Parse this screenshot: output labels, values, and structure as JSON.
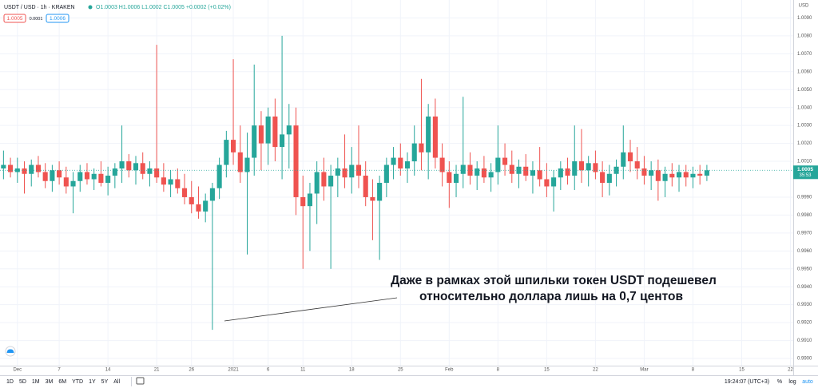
{
  "header": {
    "symbol": "USDT / USD · 1h · KRAKEN",
    "ohlc": "O1.0003 H1.0006 L1.0002 C1.0005 +0.0002 (+0.02%)",
    "bid": "1.0005",
    "spread": "0.0001",
    "ask": "1.0006"
  },
  "toolbar": {
    "ranges": [
      "1D",
      "5D",
      "1M",
      "3M",
      "6M",
      "YTD",
      "1Y",
      "5Y",
      "All"
    ],
    "clock": "19:24:07 (UTC+3)",
    "percent": "%",
    "log": "log",
    "auto": "auto"
  },
  "chart_data": {
    "type": "candlestick",
    "price_unit": "USD",
    "annotation": [
      "Даже в рамках этой шпильки токен USDT подешевел",
      "относительно доллара лишь на 0,7 центов"
    ],
    "up_color": "#26a69a",
    "down_color": "#ef5350",
    "grid": true,
    "last_price": 1.0005,
    "countdown": "35:53",
    "xlim": [
      -2.5,
      111.4
    ],
    "ylim": [
      0.9896,
      1.01
    ],
    "xticks": [
      {
        "value": 0,
        "label": "Dec"
      },
      {
        "value": 6,
        "label": "7"
      },
      {
        "value": 13,
        "label": "14"
      },
      {
        "value": 20,
        "label": "21"
      },
      {
        "value": 25,
        "label": "26"
      },
      {
        "value": 31,
        "label": "2021"
      },
      {
        "value": 36,
        "label": "6"
      },
      {
        "value": 41,
        "label": "11"
      },
      {
        "value": 48,
        "label": "18"
      },
      {
        "value": 55,
        "label": "25"
      },
      {
        "value": 62,
        "label": "Feb"
      },
      {
        "value": 69,
        "label": "8"
      },
      {
        "value": 76,
        "label": "15"
      },
      {
        "value": 83,
        "label": "22"
      },
      {
        "value": 90,
        "label": "Mar"
      },
      {
        "value": 97,
        "label": "8"
      },
      {
        "value": 104,
        "label": "15"
      },
      {
        "value": 111,
        "label": "22"
      }
    ],
    "yticks": [
      {
        "value": 0.99,
        "label": "0.9900"
      },
      {
        "value": 0.991,
        "label": "0.9910"
      },
      {
        "value": 0.992,
        "label": "0.9920"
      },
      {
        "value": 0.993,
        "label": "0.9930"
      },
      {
        "value": 0.994,
        "label": "0.9940"
      },
      {
        "value": 0.995,
        "label": "0.9950"
      },
      {
        "value": 0.996,
        "label": "0.9960"
      },
      {
        "value": 0.997,
        "label": "0.9970"
      },
      {
        "value": 0.998,
        "label": "0.9980"
      },
      {
        "value": 0.999,
        "label": "0.9990"
      },
      {
        "value": 1.001,
        "label": "1.0010"
      },
      {
        "value": 1.002,
        "label": "1.0020"
      },
      {
        "value": 1.003,
        "label": "1.0030"
      },
      {
        "value": 1.004,
        "label": "1.0040"
      },
      {
        "value": 1.005,
        "label": "1.0050"
      },
      {
        "value": 1.006,
        "label": "1.0060"
      },
      {
        "value": 1.007,
        "label": "1.0070"
      },
      {
        "value": 1.008,
        "label": "1.0080"
      },
      {
        "value": 1.009,
        "label": "1.0090"
      }
    ],
    "x": [
      -2,
      -1,
      0,
      1,
      2,
      3,
      4,
      5,
      6,
      7,
      8,
      9,
      10,
      11,
      12,
      13,
      14,
      15,
      16,
      17,
      18,
      19,
      20,
      21,
      22,
      23,
      24,
      25,
      26,
      27,
      28,
      29,
      30,
      31,
      32,
      33,
      34,
      35,
      36,
      37,
      38,
      39,
      40,
      41,
      42,
      43,
      44,
      45,
      46,
      47,
      48,
      49,
      50,
      51,
      52,
      53,
      54,
      55,
      56,
      57,
      58,
      59,
      60,
      61,
      62,
      63,
      64,
      65,
      66,
      67,
      68,
      69,
      70,
      71,
      72,
      73,
      74,
      75,
      76,
      77,
      78,
      79,
      80,
      81,
      82,
      83,
      84,
      85,
      86,
      87,
      88,
      89,
      90,
      91,
      92,
      93,
      94,
      95,
      96,
      97,
      98,
      99
    ],
    "candles": [
      [
        1.0006,
        1.0016,
        1.0,
        1.0008
      ],
      [
        1.0008,
        1.0012,
        1.0001,
        1.0004
      ],
      [
        1.0004,
        1.0012,
        0.9998,
        1.0006
      ],
      [
        1.0006,
        1.001,
        0.9992,
        1.0003
      ],
      [
        1.0003,
        1.0011,
        0.9996,
        1.0008
      ],
      [
        1.0008,
        1.0013,
        1.0001,
        1.0004
      ],
      [
        1.0004,
        1.0009,
        0.9995,
        0.9999
      ],
      [
        0.9999,
        1.0008,
        0.9993,
        1.0005
      ],
      [
        1.0005,
        1.001,
        0.9997,
        1.0001
      ],
      [
        1.0001,
        1.0007,
        0.9992,
        0.9996
      ],
      [
        0.9996,
        1.0004,
        0.9981,
        0.9999
      ],
      [
        0.9999,
        1.0008,
        0.9993,
        1.0004
      ],
      [
        1.0004,
        1.0009,
        0.9997,
        1.0
      ],
      [
        1.0,
        1.0006,
        0.9994,
        1.0003
      ],
      [
        1.0003,
        1.001,
        0.9996,
        0.9998
      ],
      [
        0.9998,
        1.0007,
        0.9991,
        1.0002
      ],
      [
        1.0002,
        1.0009,
        0.9995,
        1.0006
      ],
      [
        1.0006,
        1.003,
        0.9998,
        1.001
      ],
      [
        1.001,
        1.0014,
        1.0001,
        1.0005
      ],
      [
        1.0005,
        1.0013,
        0.9997,
        1.0009
      ],
      [
        1.0009,
        1.0015,
        1.0,
        1.0003
      ],
      [
        1.0003,
        1.001,
        0.9996,
        1.0006
      ],
      [
        1.0006,
        1.0075,
        0.9998,
        1.0001
      ],
      [
        1.0001,
        1.0009,
        0.9993,
        0.9997
      ],
      [
        0.9997,
        1.0005,
        0.999,
        1.0
      ],
      [
        1.0,
        1.0006,
        0.9992,
        0.9995
      ],
      [
        0.9995,
        1.0003,
        0.9986,
        0.999
      ],
      [
        0.999,
        0.9999,
        0.9981,
        0.9986
      ],
      [
        0.9986,
        0.9996,
        0.9978,
        0.9982
      ],
      [
        0.9982,
        0.9992,
        0.9976,
        0.9988
      ],
      [
        0.9988,
        0.9998,
        0.9916,
        0.9995
      ],
      [
        0.9995,
        1.0012,
        0.9989,
        1.0008
      ],
      [
        1.0008,
        1.0027,
        1.0001,
        1.0022
      ],
      [
        1.0022,
        1.0067,
        1.0008,
        1.0015
      ],
      [
        1.0015,
        1.003,
        0.9998,
        1.0004
      ],
      [
        1.0004,
        1.0026,
        0.9958,
        1.0012
      ],
      [
        1.0012,
        1.0064,
        1.0002,
        1.003
      ],
      [
        1.003,
        1.0038,
        1.0005,
        1.002
      ],
      [
        1.002,
        1.004,
        1.0008,
        1.0035
      ],
      [
        1.0035,
        1.0045,
        1.001,
        1.0018
      ],
      [
        1.0018,
        1.008,
        1.0,
        1.0025
      ],
      [
        1.0025,
        1.0042,
        1.0006,
        1.003
      ],
      [
        1.003,
        1.004,
        0.998,
        0.999
      ],
      [
        0.999,
        1.0002,
        0.995,
        0.9985
      ],
      [
        0.9985,
        0.9998,
        0.996,
        0.9992
      ],
      [
        0.9992,
        1.001,
        0.9975,
        1.0004
      ],
      [
        1.0004,
        1.0012,
        0.9988,
        0.9996
      ],
      [
        0.9996,
        1.0008,
        0.995,
        1.0002
      ],
      [
        1.0002,
        1.0012,
        0.999,
        1.0006
      ],
      [
        1.0006,
        1.0025,
        0.9995,
        1.0001
      ],
      [
        1.0001,
        1.0018,
        0.9992,
        1.0008
      ],
      [
        1.0008,
        1.003,
        0.9995,
        1.0002
      ],
      [
        1.0002,
        1.001,
        0.9985,
        0.999
      ],
      [
        0.999,
        1.0,
        0.9966,
        0.9988
      ],
      [
        0.9988,
        1.0002,
        0.9955,
        0.9998
      ],
      [
        0.9998,
        1.0012,
        0.999,
        1.0008
      ],
      [
        1.0008,
        1.0018,
        1.0,
        1.0012
      ],
      [
        1.0012,
        1.002,
        1.0002,
        1.0006
      ],
      [
        1.0006,
        1.0015,
        0.9998,
        1.001
      ],
      [
        1.001,
        1.003,
        1.0002,
        1.002
      ],
      [
        1.002,
        1.0056,
        1.0005,
        1.0015
      ],
      [
        1.0015,
        1.0042,
        1.0,
        1.0035
      ],
      [
        1.0035,
        1.0045,
        1.0006,
        1.0012
      ],
      [
        1.0012,
        1.002,
        0.9996,
        1.0004
      ],
      [
        1.0004,
        1.001,
        0.9984,
        0.9998
      ],
      [
        0.9998,
        1.0008,
        0.999,
        1.0003
      ],
      [
        1.0003,
        1.0046,
        0.9995,
        1.0008
      ],
      [
        1.0008,
        1.0015,
        0.9997,
        1.0002
      ],
      [
        1.0002,
        1.001,
        0.9994,
        1.0006
      ],
      [
        1.0006,
        1.0013,
        0.9998,
        1.0001
      ],
      [
        1.0001,
        1.0009,
        0.9993,
        1.0004
      ],
      [
        1.0004,
        1.003,
        0.9997,
        1.0012
      ],
      [
        1.0012,
        1.002,
        1.0002,
        1.0008
      ],
      [
        1.0008,
        1.0016,
        0.9998,
        1.0003
      ],
      [
        1.0003,
        1.0011,
        0.9995,
        1.0007
      ],
      [
        1.0007,
        1.0014,
        0.9999,
        1.0002
      ],
      [
        1.0002,
        1.001,
        0.9992,
        1.0005
      ],
      [
        1.0005,
        1.0018,
        0.9996,
        1.0
      ],
      [
        1.0,
        1.0009,
        0.999,
        0.9996
      ],
      [
        0.9996,
        1.0005,
        0.9982,
        1.0001
      ],
      [
        1.0001,
        1.001,
        0.9994,
        1.0006
      ],
      [
        1.0006,
        1.0012,
        0.9997,
        1.0002
      ],
      [
        1.0002,
        1.003,
        0.9994,
        1.001
      ],
      [
        1.001,
        1.0028,
        0.9998,
        1.0005
      ],
      [
        1.0005,
        1.0013,
        0.9996,
        1.0009
      ],
      [
        1.0009,
        1.0016,
        1.0,
        1.0004
      ],
      [
        1.0004,
        1.001,
        0.999,
        0.9998
      ],
      [
        0.9998,
        1.0008,
        0.9991,
        1.0003
      ],
      [
        1.0003,
        1.0011,
        0.9996,
        1.0007
      ],
      [
        1.0007,
        1.003,
        1.0,
        1.0015
      ],
      [
        1.0015,
        1.0022,
        1.0004,
        1.001
      ],
      [
        1.001,
        1.0018,
        1.0,
        1.0006
      ],
      [
        1.0006,
        1.0013,
        0.9997,
        1.0002
      ],
      [
        1.0002,
        1.001,
        0.9994,
        1.0005
      ],
      [
        1.0005,
        1.0011,
        0.9988,
        0.9999
      ],
      [
        0.9999,
        1.0007,
        0.999,
        1.0003
      ],
      [
        1.0003,
        1.0009,
        0.9996,
        1.0001
      ],
      [
        1.0001,
        1.0008,
        0.9993,
        1.0004
      ],
      [
        1.0004,
        1.0008,
        0.9996,
        1.0001
      ],
      [
        1.0001,
        1.0007,
        0.9995,
        1.0003
      ],
      [
        1.0003,
        1.0008,
        0.9997,
        1.0002
      ],
      [
        1.0002,
        1.0008,
        0.9999,
        1.0005
      ]
    ]
  }
}
